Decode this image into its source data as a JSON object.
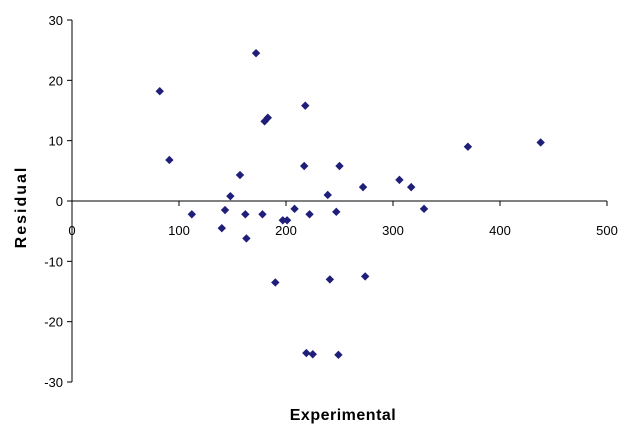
{
  "chart_data": {
    "type": "scatter",
    "title": "",
    "xlabel": "Experimental",
    "ylabel": "Residual",
    "xlim": [
      0,
      500
    ],
    "ylim": [
      -30,
      30
    ],
    "x_ticks": [
      "0",
      "100",
      "200",
      "300",
      "400",
      "500"
    ],
    "y_ticks": [
      "30",
      "20",
      "10",
      "0",
      "-10",
      "-20",
      "-30"
    ],
    "grid": false,
    "legend": "none",
    "marker_color": "#1f1f7a",
    "series": [
      {
        "x": [
          82,
          91,
          112,
          140,
          143,
          148,
          157,
          162,
          163,
          172,
          178,
          180,
          183,
          190,
          197,
          201,
          208,
          217,
          218,
          219,
          222,
          225,
          239,
          241,
          247,
          249,
          250,
          272,
          274,
          306,
          317,
          329,
          370,
          438
        ],
        "y": [
          18.2,
          6.8,
          -2.2,
          -4.5,
          -1.5,
          0.8,
          4.3,
          -2.2,
          -6.2,
          24.5,
          -2.2,
          13.2,
          13.8,
          -13.5,
          -3.2,
          -3.2,
          -1.3,
          5.8,
          15.8,
          -25.2,
          -2.2,
          -25.4,
          1.0,
          -13.0,
          -1.8,
          -25.5,
          5.8,
          2.3,
          -12.5,
          3.5,
          2.3,
          -1.3,
          9.0,
          9.7
        ]
      }
    ]
  }
}
